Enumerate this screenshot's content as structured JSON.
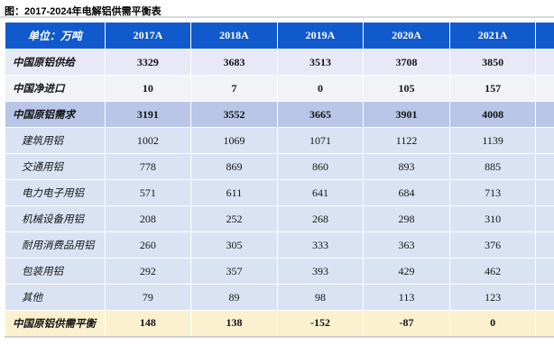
{
  "title": "图：2017-2024年电解铝供需平衡表",
  "table": {
    "unit_header": "单位：万吨",
    "year_columns": [
      "2017A",
      "2018A",
      "2019A",
      "2020A",
      "2021A"
    ],
    "rows": [
      {
        "label": "中国原铝供给",
        "style": "supply",
        "values": [
          "3329",
          "3683",
          "3513",
          "3708",
          "3850"
        ]
      },
      {
        "label": "中国净进口",
        "style": "import",
        "values": [
          "10",
          "7",
          "0",
          "105",
          "157"
        ]
      },
      {
        "label": "中国原铝需求",
        "style": "demand",
        "values": [
          "3191",
          "3552",
          "3665",
          "3901",
          "4008"
        ]
      },
      {
        "label": "建筑用铝",
        "style": "detail",
        "values": [
          "1002",
          "1069",
          "1071",
          "1122",
          "1139"
        ]
      },
      {
        "label": "交通用铝",
        "style": "detail",
        "values": [
          "778",
          "869",
          "860",
          "893",
          "885"
        ]
      },
      {
        "label": "电力电子用铝",
        "style": "detail",
        "values": [
          "571",
          "611",
          "641",
          "684",
          "713"
        ]
      },
      {
        "label": "机械设备用铝",
        "style": "detail",
        "values": [
          "208",
          "252",
          "268",
          "298",
          "310"
        ]
      },
      {
        "label": "耐用消费品用铝",
        "style": "detail",
        "values": [
          "260",
          "305",
          "333",
          "363",
          "376"
        ]
      },
      {
        "label": "包装用铝",
        "style": "detail",
        "values": [
          "292",
          "357",
          "393",
          "429",
          "462"
        ]
      },
      {
        "label": "其他",
        "style": "detail",
        "values": [
          "79",
          "89",
          "98",
          "113",
          "123"
        ]
      },
      {
        "label": "中国原铝供需平衡",
        "style": "balance",
        "values": [
          "148",
          "138",
          "-152",
          "-87",
          "0"
        ]
      }
    ],
    "truncated_column_visible": true
  },
  "colors": {
    "header_background": "#115ACD",
    "header_text": "#FFFFFF",
    "row_supply": "#E7EAF6",
    "row_import": "#F2F3F7",
    "row_demand": "#B9C6E7",
    "row_detail": "#DAE3F3",
    "row_balance": "#FCF1CF",
    "grid_line": "#FFFFFF",
    "title_rule": "#D9D9D9"
  }
}
